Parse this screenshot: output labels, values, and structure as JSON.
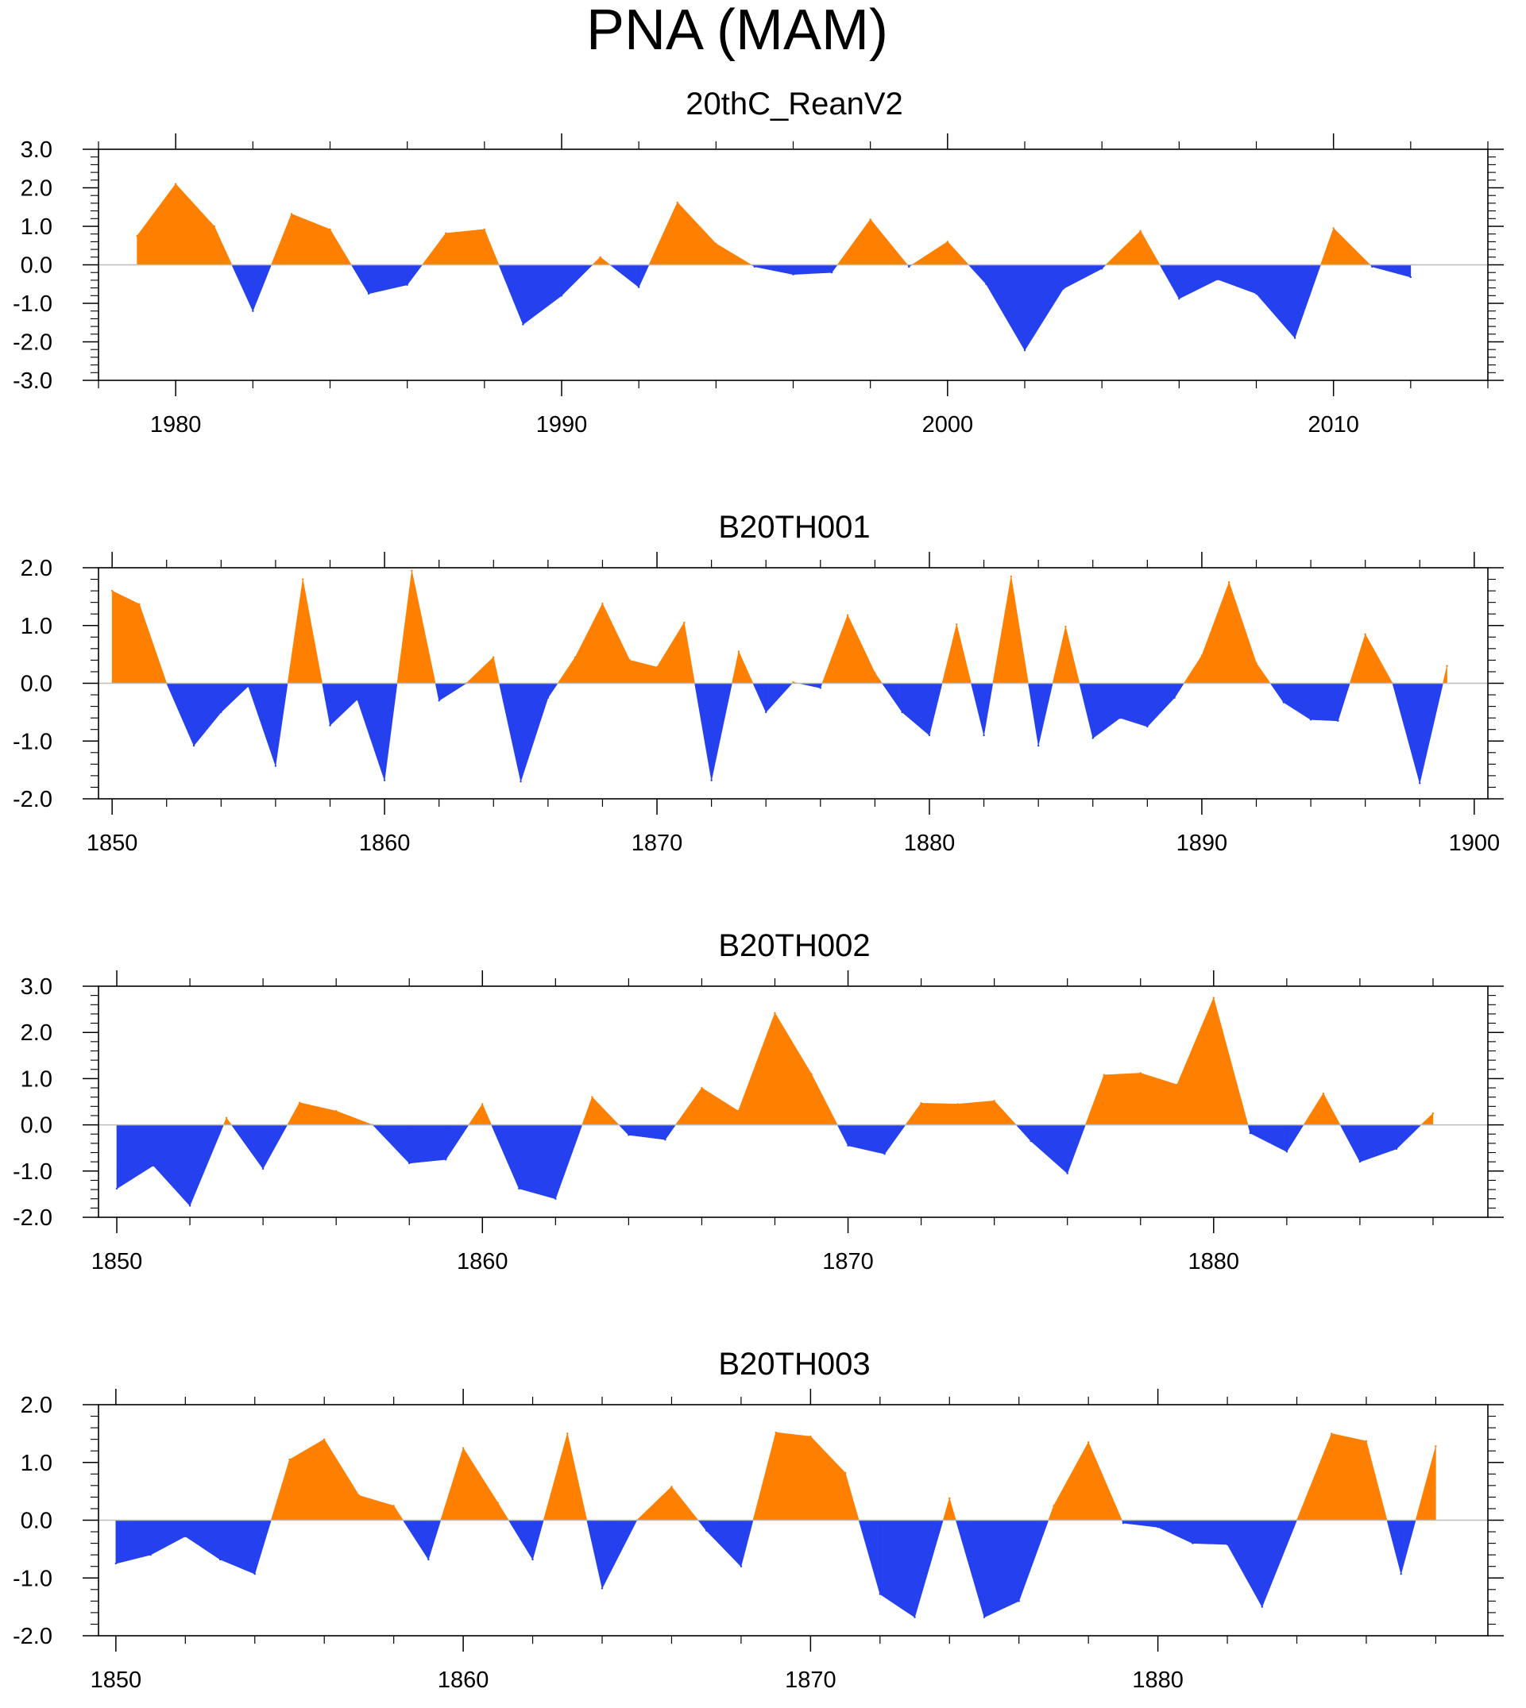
{
  "figure": {
    "title": "PNA (MAM)",
    "colors": {
      "positive": "#ff8000",
      "negative": "#2540ee",
      "zero_line": "#bbbbbb",
      "frame": "#000000"
    }
  },
  "chart_data": [
    {
      "type": "area",
      "title": "20thC_ReanV2",
      "xlim": [
        1978,
        2014
      ],
      "ylim": [
        -3.0,
        3.0
      ],
      "xticks": [
        1980,
        1990,
        2000,
        2010
      ],
      "xtick_labels": [
        "1980",
        "1990",
        "2000",
        "2010"
      ],
      "yticks": [
        -3.0,
        -2.0,
        -1.0,
        0.0,
        1.0,
        2.0,
        3.0
      ],
      "ytick_labels": [
        "-3.0",
        "-2.0",
        "-1.0",
        "0.0",
        "1.0",
        "2.0",
        "3.0"
      ],
      "x_minor_step": 2,
      "y_minor_step": 0.2,
      "x": [
        1979,
        1980,
        1981,
        1982,
        1983,
        1984,
        1985,
        1986,
        1987,
        1988,
        1989,
        1990,
        1991,
        1992,
        1993,
        1994,
        1995,
        1996,
        1997,
        1998,
        1999,
        2000,
        2001,
        2002,
        2003,
        2004,
        2005,
        2006,
        2007,
        2008,
        2009,
        2010,
        2011,
        2012
      ],
      "values": [
        0.75,
        2.1,
        1.0,
        -1.2,
        1.32,
        0.92,
        -0.75,
        -0.52,
        0.82,
        0.92,
        -1.55,
        -0.8,
        0.2,
        -0.58,
        1.62,
        0.55,
        -0.05,
        -0.25,
        -0.2,
        1.18,
        -0.05,
        0.6,
        -0.5,
        -2.22,
        -0.62,
        -0.1,
        0.88,
        -0.88,
        -0.38,
        -0.75,
        -1.9,
        0.95,
        -0.05,
        -0.32
      ]
    },
    {
      "type": "area",
      "title": "B20TH001",
      "xlim": [
        1849.5,
        1900.5
      ],
      "ylim": [
        -2.0,
        2.0
      ],
      "xticks": [
        1850,
        1860,
        1870,
        1880,
        1890,
        1900
      ],
      "xtick_labels": [
        "1850",
        "1860",
        "1870",
        "1880",
        "1890",
        "1900"
      ],
      "yticks": [
        -2.0,
        -1.0,
        0.0,
        1.0,
        2.0
      ],
      "ytick_labels": [
        "-2.0",
        "-1.0",
        "0.0",
        "1.0",
        "2.0"
      ],
      "x_minor_step": 2,
      "y_minor_step": 0.2,
      "x": [
        1850,
        1851,
        1852,
        1853,
        1854,
        1855,
        1856,
        1857,
        1858,
        1859,
        1860,
        1861,
        1862,
        1863,
        1864,
        1865,
        1866,
        1867,
        1868,
        1869,
        1870,
        1871,
        1872,
        1873,
        1874,
        1875,
        1876,
        1877,
        1878,
        1879,
        1880,
        1881,
        1882,
        1883,
        1884,
        1885,
        1886,
        1887,
        1888,
        1889,
        1890,
        1891,
        1892,
        1893,
        1894,
        1895,
        1896,
        1897,
        1898,
        1899
      ],
      "values": [
        1.6,
        1.37,
        0.0,
        -1.08,
        -0.5,
        -0.05,
        -1.43,
        1.8,
        -0.73,
        -0.28,
        -1.68,
        1.95,
        -0.3,
        0.0,
        0.45,
        -1.7,
        -0.25,
        0.45,
        1.38,
        0.4,
        0.28,
        1.05,
        -1.68,
        0.55,
        -0.5,
        0.02,
        -0.08,
        1.18,
        0.18,
        -0.5,
        -0.9,
        1.02,
        -0.9,
        1.85,
        -1.08,
        0.98,
        -0.95,
        -0.6,
        -0.75,
        -0.25,
        0.48,
        1.75,
        0.35,
        -0.33,
        -0.63,
        -0.65,
        0.85,
        0.0,
        -1.73,
        0.3
      ]
    },
    {
      "type": "area",
      "title": "B20TH002",
      "xlim": [
        1849.5,
        1887.5
      ],
      "ylim": [
        -2.0,
        3.0
      ],
      "xticks": [
        1850,
        1860,
        1870,
        1880
      ],
      "xtick_labels": [
        "1850",
        "1860",
        "1870",
        "1880"
      ],
      "yticks": [
        -2.0,
        -1.0,
        0.0,
        1.0,
        2.0,
        3.0
      ],
      "ytick_labels": [
        "-2.0",
        "-1.0",
        "0.0",
        "1.0",
        "2.0",
        "3.0"
      ],
      "x_minor_step": 2,
      "y_minor_step": 0.2,
      "x": [
        1850,
        1851,
        1852,
        1853,
        1854,
        1855,
        1856,
        1857,
        1858,
        1859,
        1860,
        1861,
        1862,
        1863,
        1864,
        1865,
        1866,
        1867,
        1868,
        1869,
        1870,
        1871,
        1872,
        1873,
        1874,
        1875,
        1876,
        1877,
        1878,
        1879,
        1880,
        1881,
        1882,
        1883,
        1884,
        1885,
        1886
      ],
      "values": [
        -1.38,
        -0.88,
        -1.75,
        0.15,
        -0.95,
        0.48,
        0.3,
        0.0,
        -0.83,
        -0.75,
        0.45,
        -1.38,
        -1.6,
        0.6,
        -0.22,
        -0.32,
        0.8,
        0.3,
        2.42,
        1.1,
        -0.45,
        -0.63,
        0.47,
        0.45,
        0.52,
        -0.35,
        -1.05,
        1.08,
        1.12,
        0.87,
        2.75,
        -0.18,
        -0.58,
        0.68,
        -0.8,
        -0.52,
        0.25
      ]
    },
    {
      "type": "area",
      "title": "B20TH003",
      "xlim": [
        1849.5,
        1889.5
      ],
      "ylim": [
        -2.0,
        2.0
      ],
      "xticks": [
        1850,
        1860,
        1870,
        1880
      ],
      "xtick_labels": [
        "1850",
        "1860",
        "1870",
        "1880"
      ],
      "yticks": [
        -2.0,
        -1.0,
        0.0,
        1.0,
        2.0
      ],
      "ytick_labels": [
        "-2.0",
        "-1.0",
        "0.0",
        "1.0",
        "2.0"
      ],
      "x_minor_step": 2,
      "y_minor_step": 0.2,
      "x": [
        1850,
        1851,
        1852,
        1853,
        1854,
        1855,
        1856,
        1857,
        1858,
        1859,
        1860,
        1861,
        1862,
        1863,
        1864,
        1865,
        1866,
        1867,
        1868,
        1869,
        1870,
        1871,
        1872,
        1873,
        1874,
        1875,
        1876,
        1877,
        1878,
        1879,
        1880,
        1881,
        1882,
        1883,
        1884,
        1885,
        1886,
        1887,
        1888
      ],
      "values": [
        -0.75,
        -0.6,
        -0.28,
        -0.68,
        -0.93,
        1.05,
        1.4,
        0.43,
        0.25,
        -0.68,
        1.25,
        0.3,
        -0.68,
        1.5,
        -1.18,
        0.0,
        0.58,
        -0.18,
        -0.8,
        1.52,
        1.45,
        0.82,
        -1.28,
        -1.68,
        0.38,
        -1.68,
        -1.4,
        0.25,
        1.35,
        -0.05,
        -0.12,
        -0.4,
        -0.42,
        -1.5,
        0.0,
        1.5,
        1.37,
        -0.93,
        1.28
      ]
    }
  ]
}
